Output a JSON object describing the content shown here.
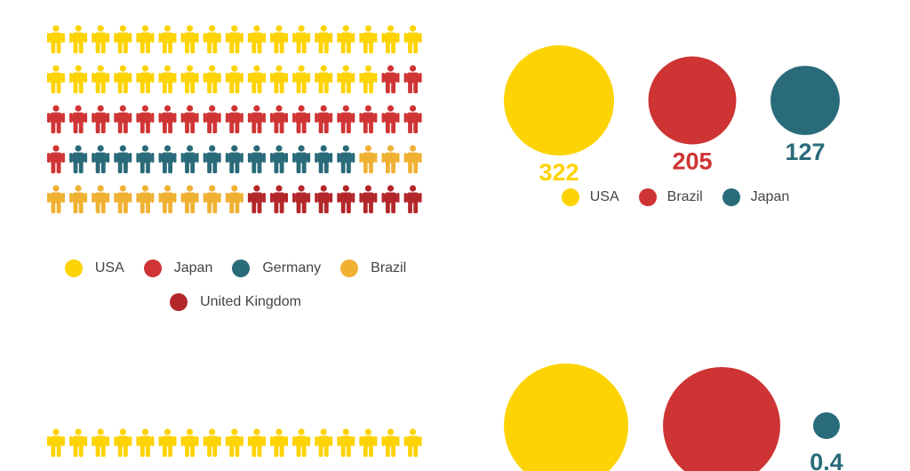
{
  "colors": {
    "USA": "#FDD303",
    "Japan": "#D03535",
    "Germany": "#2A6B7A",
    "Brazil": "#F0B133",
    "United Kingdom": "#B3272A",
    "bubble_brazil": "#CE3433",
    "bubble_japan": "#2A6B7A"
  },
  "icon": "person-icon",
  "chart_data": [
    {
      "type": "pictogram",
      "icons_per_row": 17,
      "rows": 5,
      "categories": [
        "USA",
        "Japan",
        "Germany",
        "Brazil",
        "United Kingdom"
      ],
      "values": [
        32,
        20,
        13,
        12,
        8
      ],
      "legend": [
        "USA",
        "Japan",
        "Germany",
        "Brazil",
        "United Kingdom"
      ],
      "legend_placement": "bottom"
    },
    {
      "type": "bubble",
      "categories": [
        "USA",
        "Brazil",
        "Japan"
      ],
      "values": [
        322,
        205,
        127
      ],
      "value_labels": [
        "322",
        "205",
        "127"
      ],
      "legend": [
        "USA",
        "Brazil",
        "Japan"
      ],
      "legend_placement": "bottom"
    },
    {
      "type": "pictogram",
      "icons_per_row": 17,
      "categories": [
        "USA"
      ],
      "values": [
        17
      ]
    },
    {
      "type": "bubble",
      "categories": [
        "USA",
        "Brazil",
        "Japan"
      ],
      "value_labels": [
        "",
        "",
        "0.4"
      ]
    }
  ]
}
